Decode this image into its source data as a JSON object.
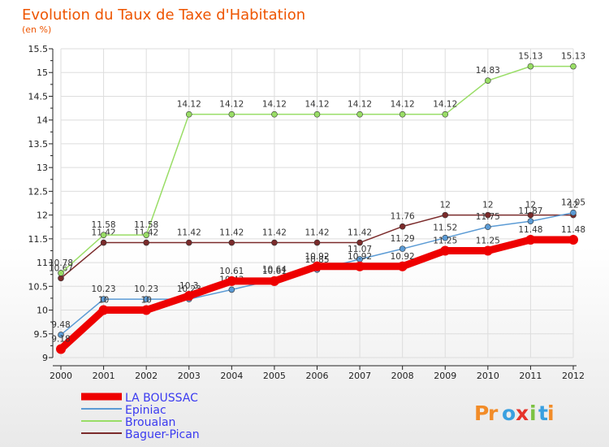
{
  "title": "Evolution du Taux de Taxe d'Habitation",
  "subtitle": "(en %)",
  "brand": "Proxiti",
  "chart_data": {
    "type": "line",
    "title": "Evolution du Taux de Taxe d'Habitation",
    "ylabel": "(en %)",
    "x": [
      "2000",
      "2001",
      "2002",
      "2003",
      "2004",
      "2005",
      "2006",
      "2007",
      "2008",
      "2009",
      "2010",
      "2011",
      "2012"
    ],
    "ylim": [
      9,
      15.5
    ],
    "yticks": [
      "9",
      "9.5",
      "10",
      "10.5",
      "11",
      "11.5",
      "12",
      "12.5",
      "13",
      "13.5",
      "14",
      "14.5",
      "15",
      "15.5"
    ],
    "grid": true,
    "legend_position": "bottom-left",
    "series": [
      {
        "name": "LA BOUSSAC",
        "color": "#ee0000",
        "values": [
          9.18,
          10,
          10,
          10.3,
          10.61,
          10.61,
          10.92,
          10.92,
          10.92,
          11.25,
          11.25,
          11.48,
          11.48
        ],
        "labels": [
          "9.18",
          "10",
          "10",
          "10.3",
          "10.61",
          "10.61",
          "10.92",
          "10.92",
          "10.92",
          "11.25",
          "11.25",
          "11.48",
          "11.48"
        ]
      },
      {
        "name": "Epiniac",
        "color": "#5b9bd5",
        "values": [
          9.48,
          10.23,
          10.23,
          10.23,
          10.43,
          10.64,
          10.85,
          11.07,
          11.29,
          11.52,
          11.75,
          11.87,
          12.05
        ],
        "labels": [
          "9.48",
          "10.23",
          "10.23",
          "10.23",
          "10.43",
          "10.64",
          "10.85",
          "11.07",
          "11.29",
          "11.52",
          "11.75",
          "11.87",
          "12.05"
        ]
      },
      {
        "name": "Broualan",
        "color": "#99dd66",
        "values": [
          10.78,
          11.58,
          11.58,
          14.12,
          14.12,
          14.12,
          14.12,
          14.12,
          14.12,
          14.12,
          14.83,
          15.13,
          15.13
        ],
        "labels": [
          "10.78",
          "11.58",
          "11.58",
          "14.12",
          "14.12",
          "14.12",
          "14.12",
          "14.12",
          "14.12",
          "14.12",
          "14.83",
          "15.13",
          "15.13"
        ]
      },
      {
        "name": "Baguer-Pican",
        "color": "#7b2b2b",
        "values": [
          10.67,
          11.42,
          11.42,
          11.42,
          11.42,
          11.42,
          11.42,
          11.42,
          11.76,
          12,
          12,
          12,
          12
        ],
        "labels": [
          "10.67",
          "11.42",
          "11.42",
          "11.42",
          "11.42",
          "11.42",
          "11.42",
          "11.42",
          "11.76",
          "12",
          "12",
          "12",
          "12"
        ]
      }
    ]
  }
}
